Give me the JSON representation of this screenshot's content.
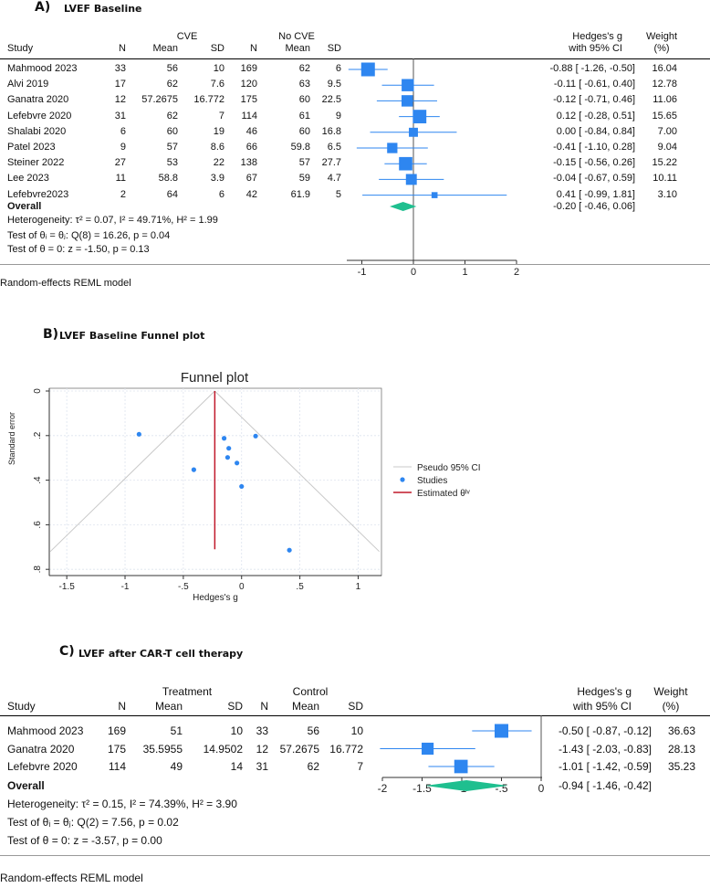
{
  "panelA": {
    "letter": "A)",
    "title": "LVEF Baseline",
    "group1": "CVE",
    "group2": "No CVE",
    "columns": [
      "Study",
      "N",
      "Mean",
      "SD",
      "N",
      "Mean",
      "SD"
    ],
    "effect_header1": "Hedges's g",
    "effect_header2": "with 95% CI",
    "weight_header1": "Weight",
    "weight_header2": "(%)",
    "rows": [
      {
        "study": "Mahmood 2023",
        "n1": "33",
        "mean1": "56",
        "sd1": "10",
        "n2": "169",
        "mean2": "62",
        "sd2": "6",
        "ci": "-0.88 [ -1.26, -0.50]",
        "weight": "16.04"
      },
      {
        "study": "Alvi 2019",
        "n1": "17",
        "mean1": "62",
        "sd1": "7.6",
        "n2": "120",
        "mean2": "63",
        "sd2": "9.5",
        "ci": "-0.11 [ -0.61, 0.40]",
        "weight": "12.78"
      },
      {
        "study": "Ganatra 2020",
        "n1": "12",
        "mean1": "57.2675",
        "sd1": "16.772",
        "n2": "175",
        "mean2": "60",
        "sd2": "22.5",
        "ci": "-0.12 [ -0.71, 0.46]",
        "weight": "11.06"
      },
      {
        "study": "Lefebvre 2020",
        "n1": "31",
        "mean1": "62",
        "sd1": "7",
        "n2": "114",
        "mean2": "61",
        "sd2": "9",
        "ci": "0.12 [ -0.28, 0.51]",
        "weight": "15.65"
      },
      {
        "study": "Shalabi 2020",
        "n1": "6",
        "mean1": "60",
        "sd1": "19",
        "n2": "46",
        "mean2": "60",
        "sd2": "16.8",
        "ci": "0.00 [ -0.84, 0.84]",
        "weight": "7.00"
      },
      {
        "study": "Patel 2023",
        "n1": "9",
        "mean1": "57",
        "sd1": "8.6",
        "n2": "66",
        "mean2": "59.8",
        "sd2": "6.5",
        "ci": "-0.41 [ -1.10, 0.28]",
        "weight": "9.04"
      },
      {
        "study": "Steiner 2022",
        "n1": "27",
        "mean1": "53",
        "sd1": "22",
        "n2": "138",
        "mean2": "57",
        "sd2": "27.7",
        "ci": "-0.15 [ -0.56, 0.26]",
        "weight": "15.22"
      },
      {
        "study": "Lee 2023",
        "n1": "11",
        "mean1": "58.8",
        "sd1": "3.9",
        "n2": "67",
        "mean2": "59",
        "sd2": "4.7",
        "ci": "-0.04 [ -0.67, 0.59]",
        "weight": "10.11"
      },
      {
        "study": "Lefebvre2023",
        "n1": "2",
        "mean1": "64",
        "sd1": "6",
        "n2": "42",
        "mean2": "61.9",
        "sd2": "5",
        "ci": "0.41 [ -0.99, 1.81]",
        "weight": "3.10"
      }
    ],
    "overall_label": "Overall",
    "overall_ci": "-0.20 [ -0.46, 0.06]",
    "heterogeneity": "Heterogeneity: τ² = 0.07, I² = 49.71%, H² = 1.99",
    "test_equal": "Test of θᵢ = θⱼ: Q(8) = 16.26, p = 0.04",
    "test_zero": "Test of θ = 0: z = -1.50, p = 0.13",
    "footer": "Random-effects REML model"
  },
  "panelB": {
    "letter": "B)",
    "title": "LVEF Baseline Funnel plot"
  },
  "panelC": {
    "letter": "C)",
    "title": "LVEF after CAR-T cell therapy",
    "group1": "Treatment",
    "group2": "Control",
    "columns": [
      "Study",
      "N",
      "Mean",
      "SD",
      "N",
      "Mean",
      "SD"
    ],
    "effect_header1": "Hedges's g",
    "effect_header2": "with 95% CI",
    "weight_header1": "Weight",
    "weight_header2": "(%)",
    "rows": [
      {
        "study": "Mahmood 2023",
        "n1": "169",
        "mean1": "51",
        "sd1": "10",
        "n2": "33",
        "mean2": "56",
        "sd2": "10",
        "ci": "-0.50 [ -0.87, -0.12]",
        "weight": "36.63"
      },
      {
        "study": "Ganatra 2020",
        "n1": "175",
        "mean1": "35.5955",
        "sd1": "14.9502",
        "n2": "12",
        "mean2": "57.2675",
        "sd2": "16.772",
        "ci": "-1.43 [ -2.03, -0.83]",
        "weight": "28.13"
      },
      {
        "study": "Lefebvre 2020",
        "n1": "114",
        "mean1": "49",
        "sd1": "14",
        "n2": "31",
        "mean2": "62",
        "sd2": "7",
        "ci": "-1.01 [ -1.42, -0.59]",
        "weight": "35.23"
      }
    ],
    "overall_label": "Overall",
    "overall_ci": "-0.94 [ -1.46, -0.42]",
    "heterogeneity": "Heterogeneity: τ² = 0.15, I² = 74.39%, H² = 3.90",
    "test_equal": "Test of θᵢ = θⱼ: Q(2) = 7.56, p = 0.02",
    "test_zero": "Test of θ = 0: z = -3.57, p = 0.00",
    "footer": "Random-effects REML model"
  },
  "colors": {
    "marker": "#2e86f0",
    "ci_line": "#2e86f0",
    "diamond": "#1fbf8f",
    "estimate_line": "#c0182a",
    "pseudo_ci": "#c8c8c8"
  },
  "chart_data": [
    {
      "type": "forest",
      "title": "LVEF Baseline",
      "xlabel": "",
      "xlim": [
        -1.3,
        2
      ],
      "ticks": [
        "-1",
        "0",
        "1",
        "2"
      ],
      "tick_values": [
        -1,
        0,
        1,
        2
      ],
      "studies": [
        "Mahmood 2023",
        "Alvi 2019",
        "Ganatra 2020",
        "Lefebvre 2020",
        "Shalabi 2020",
        "Patel 2023",
        "Steiner 2022",
        "Lee 2023",
        "Lefebvre2023"
      ],
      "estimates": [
        -0.88,
        -0.11,
        -0.12,
        0.12,
        0.0,
        -0.41,
        -0.15,
        -0.04,
        0.41
      ],
      "lower": [
        -1.26,
        -0.61,
        -0.71,
        -0.28,
        -0.84,
        -1.1,
        -0.56,
        -0.67,
        -0.99
      ],
      "upper": [
        -0.5,
        0.4,
        0.46,
        0.51,
        0.84,
        0.28,
        0.26,
        0.59,
        1.81
      ],
      "weights": [
        16.04,
        12.78,
        11.06,
        15.65,
        7.0,
        9.04,
        15.22,
        10.11,
        3.1
      ],
      "overall": {
        "estimate": -0.2,
        "lower": -0.46,
        "upper": 0.06
      }
    },
    {
      "type": "scatter",
      "title": "Funnel plot",
      "xlabel": "Hedges's g",
      "ylabel": "Standard error",
      "xlim": [
        -1.65,
        1.2
      ],
      "ylim": [
        0,
        0.8
      ],
      "y_reversed": true,
      "x_ticks": [
        "-1.5",
        "-1",
        "-.5",
        "0",
        ".5",
        "1"
      ],
      "x_tick_values": [
        -1.5,
        -1,
        -0.5,
        0,
        0.5,
        1
      ],
      "y_ticks": [
        "0",
        ".2",
        ".4",
        ".6",
        ".8"
      ],
      "y_tick_values": [
        0,
        0.2,
        0.4,
        0.6,
        0.8
      ],
      "x": [
        -0.88,
        -0.41,
        -0.15,
        -0.12,
        -0.11,
        -0.04,
        0.0,
        0.12,
        0.41
      ],
      "y": [
        0.194,
        0.353,
        0.212,
        0.298,
        0.257,
        0.323,
        0.428,
        0.202,
        0.714
      ],
      "estimated_theta": -0.23,
      "legend": [
        "Pseudo 95% CI",
        "Studies",
        "Estimated θᴵᵛ"
      ],
      "legend_position": "right"
    },
    {
      "type": "forest",
      "title": "LVEF after CAR-T cell therapy",
      "xlabel": "",
      "xlim": [
        -2,
        0
      ],
      "ticks": [
        "-2",
        "-1.5",
        "-1",
        "-.5",
        "0"
      ],
      "tick_values": [
        -2,
        -1.5,
        -1,
        -0.5,
        0
      ],
      "studies": [
        "Mahmood 2023",
        "Ganatra 2020",
        "Lefebvre 2020"
      ],
      "estimates": [
        -0.5,
        -1.43,
        -1.01
      ],
      "lower": [
        -0.87,
        -2.03,
        -1.42
      ],
      "upper": [
        -0.12,
        -0.83,
        -0.59
      ],
      "weights": [
        36.63,
        28.13,
        35.23
      ],
      "overall": {
        "estimate": -0.94,
        "lower": -1.46,
        "upper": -0.42
      }
    }
  ]
}
